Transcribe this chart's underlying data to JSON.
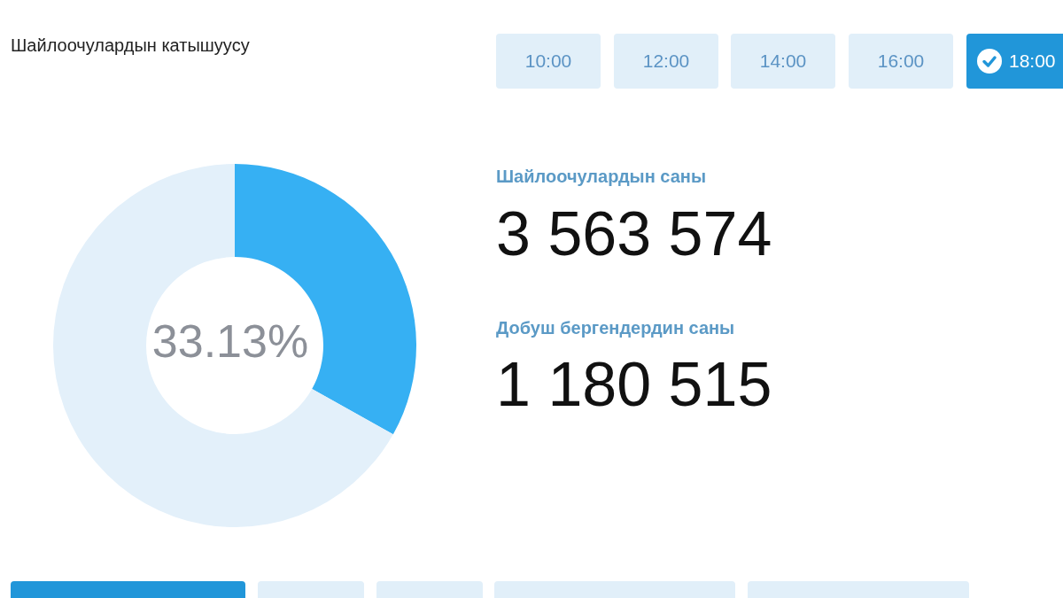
{
  "chart_data": {
    "type": "donut",
    "title": "Шайлоочулардын катышуусу",
    "categories": [
      null,
      null
    ],
    "values": [
      33.13,
      66.87
    ],
    "colors": [
      "#36b0f3",
      "#e3f0fa"
    ],
    "annotations": [
      "33.13%",
      "10:00",
      "12:00",
      "14:00",
      "16:00",
      "18:00",
      "Шайлоочулардын саны",
      "3 563 574",
      "Добуш бергендердин саны",
      "1 180 515"
    ],
    "legend": false
  }
}
